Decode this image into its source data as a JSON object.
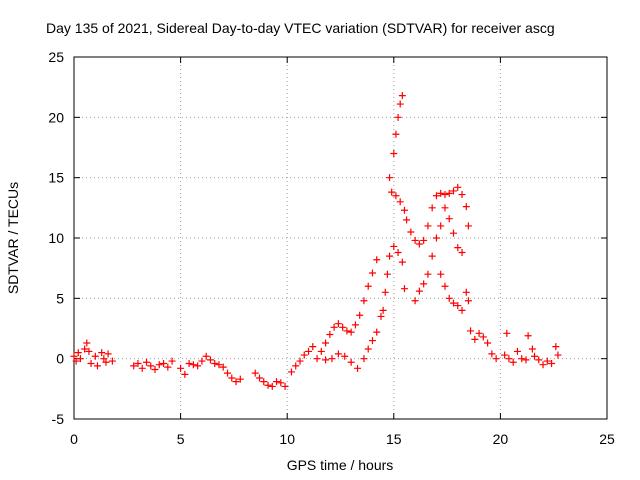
{
  "chart_data": {
    "type": "scatter",
    "title": "Day 135 of 2021, Sidereal Day-to-day VTEC variation (SDTVAR) for receiver ascg",
    "xlabel": "GPS time / hours",
    "ylabel": "SDTVAR / TECUs",
    "xlim": [
      0,
      25
    ],
    "ylim": [
      -5,
      25
    ],
    "xticks": [
      "0",
      "5",
      "10",
      "15",
      "20",
      "25"
    ],
    "yticks": [
      "-5",
      "0",
      "5",
      "10",
      "15",
      "20",
      "25"
    ],
    "grid": true,
    "marker": "+",
    "color": "#ff0000",
    "series": [
      {
        "name": "SDTVAR",
        "points": [
          [
            0.0,
            0.2
          ],
          [
            0.1,
            -0.2
          ],
          [
            0.2,
            0.5
          ],
          [
            0.3,
            0.0
          ],
          [
            0.5,
            0.8
          ],
          [
            0.6,
            1.3
          ],
          [
            0.7,
            0.6
          ],
          [
            0.8,
            -0.4
          ],
          [
            1.0,
            0.2
          ],
          [
            1.1,
            -0.6
          ],
          [
            1.3,
            0.5
          ],
          [
            1.4,
            0.0
          ],
          [
            1.5,
            -0.3
          ],
          [
            1.6,
            0.4
          ],
          [
            1.8,
            -0.2
          ],
          [
            2.8,
            -0.6
          ],
          [
            3.0,
            -0.4
          ],
          [
            3.2,
            -0.8
          ],
          [
            3.4,
            -0.3
          ],
          [
            3.6,
            -0.6
          ],
          [
            3.8,
            -0.9
          ],
          [
            4.0,
            -0.5
          ],
          [
            4.2,
            -0.4
          ],
          [
            4.4,
            -0.7
          ],
          [
            4.6,
            -0.2
          ],
          [
            5.0,
            -0.8
          ],
          [
            5.2,
            -1.3
          ],
          [
            5.4,
            -0.4
          ],
          [
            5.6,
            -0.5
          ],
          [
            5.8,
            -0.6
          ],
          [
            6.0,
            -0.2
          ],
          [
            6.2,
            0.2
          ],
          [
            6.4,
            -0.1
          ],
          [
            6.6,
            -0.4
          ],
          [
            6.8,
            -0.5
          ],
          [
            7.0,
            -0.7
          ],
          [
            7.2,
            -1.2
          ],
          [
            7.4,
            -1.6
          ],
          [
            7.6,
            -1.9
          ],
          [
            7.8,
            -1.7
          ],
          [
            8.5,
            -1.2
          ],
          [
            8.7,
            -1.6
          ],
          [
            8.9,
            -1.9
          ],
          [
            9.1,
            -2.2
          ],
          [
            9.3,
            -2.3
          ],
          [
            9.5,
            -1.9
          ],
          [
            9.7,
            -2.0
          ],
          [
            9.9,
            -2.3
          ],
          [
            10.2,
            -1.1
          ],
          [
            10.4,
            -0.6
          ],
          [
            10.6,
            -0.2
          ],
          [
            10.8,
            0.3
          ],
          [
            11.0,
            0.6
          ],
          [
            11.2,
            1.0
          ],
          [
            11.4,
            0.0
          ],
          [
            11.6,
            0.6
          ],
          [
            11.8,
            1.3
          ],
          [
            12.0,
            2.0
          ],
          [
            12.2,
            2.6
          ],
          [
            12.4,
            2.9
          ],
          [
            12.6,
            2.6
          ],
          [
            12.8,
            2.3
          ],
          [
            13.0,
            2.2
          ],
          [
            13.2,
            2.8
          ],
          [
            13.4,
            3.6
          ],
          [
            13.6,
            4.8
          ],
          [
            13.8,
            6.0
          ],
          [
            14.0,
            7.1
          ],
          [
            14.2,
            8.2
          ],
          [
            11.8,
            -0.1
          ],
          [
            12.1,
            0.0
          ],
          [
            12.4,
            0.4
          ],
          [
            12.7,
            0.2
          ],
          [
            13.0,
            -0.3
          ],
          [
            13.3,
            -0.8
          ],
          [
            13.6,
            0.0
          ],
          [
            13.8,
            0.8
          ],
          [
            14.0,
            1.5
          ],
          [
            14.2,
            2.2
          ],
          [
            14.4,
            3.5
          ],
          [
            14.5,
            4.0
          ],
          [
            14.6,
            5.5
          ],
          [
            14.7,
            7.0
          ],
          [
            14.8,
            8.5
          ],
          [
            15.0,
            9.3
          ],
          [
            15.2,
            8.8
          ],
          [
            15.4,
            8.0
          ],
          [
            15.5,
            5.8
          ],
          [
            14.8,
            15.0
          ],
          [
            15.0,
            17.0
          ],
          [
            15.1,
            18.6
          ],
          [
            15.2,
            20.0
          ],
          [
            15.3,
            21.1
          ],
          [
            15.4,
            21.8
          ],
          [
            14.9,
            13.8
          ],
          [
            15.1,
            13.5
          ],
          [
            15.3,
            13.0
          ],
          [
            15.5,
            12.3
          ],
          [
            15.6,
            11.5
          ],
          [
            15.8,
            10.5
          ],
          [
            16.0,
            9.8
          ],
          [
            16.2,
            9.5
          ],
          [
            16.4,
            9.8
          ],
          [
            16.6,
            11.0
          ],
          [
            16.8,
            12.5
          ],
          [
            17.0,
            13.5
          ],
          [
            17.2,
            13.7
          ],
          [
            17.4,
            13.6
          ],
          [
            17.6,
            13.7
          ],
          [
            17.8,
            13.9
          ],
          [
            18.0,
            14.2
          ],
          [
            18.2,
            13.6
          ],
          [
            18.4,
            12.6
          ],
          [
            18.5,
            11.0
          ],
          [
            16.0,
            4.8
          ],
          [
            16.2,
            5.6
          ],
          [
            16.4,
            6.2
          ],
          [
            16.6,
            7.0
          ],
          [
            16.8,
            8.5
          ],
          [
            17.0,
            10.0
          ],
          [
            17.2,
            11.0
          ],
          [
            17.4,
            12.5
          ],
          [
            17.6,
            11.6
          ],
          [
            17.8,
            10.4
          ],
          [
            18.0,
            9.2
          ],
          [
            18.2,
            8.8
          ],
          [
            17.2,
            7.0
          ],
          [
            17.4,
            6.0
          ],
          [
            17.6,
            5.0
          ],
          [
            17.8,
            4.6
          ],
          [
            18.0,
            4.4
          ],
          [
            18.2,
            4.0
          ],
          [
            18.4,
            5.5
          ],
          [
            18.5,
            4.8
          ],
          [
            18.6,
            2.3
          ],
          [
            18.8,
            1.6
          ],
          [
            19.0,
            2.1
          ],
          [
            19.2,
            1.8
          ],
          [
            19.4,
            1.3
          ],
          [
            19.6,
            0.4
          ],
          [
            19.8,
            0.0
          ],
          [
            20.2,
            0.3
          ],
          [
            20.3,
            2.1
          ],
          [
            20.4,
            0.0
          ],
          [
            20.6,
            -0.3
          ],
          [
            20.8,
            0.6
          ],
          [
            21.0,
            0.0
          ],
          [
            21.2,
            -0.1
          ],
          [
            21.3,
            1.9
          ],
          [
            21.5,
            0.8
          ],
          [
            21.6,
            0.2
          ],
          [
            21.8,
            -0.1
          ],
          [
            22.0,
            -0.5
          ],
          [
            22.2,
            -0.2
          ],
          [
            22.4,
            -0.4
          ],
          [
            22.6,
            1.0
          ],
          [
            22.7,
            0.3
          ]
        ]
      }
    ]
  }
}
